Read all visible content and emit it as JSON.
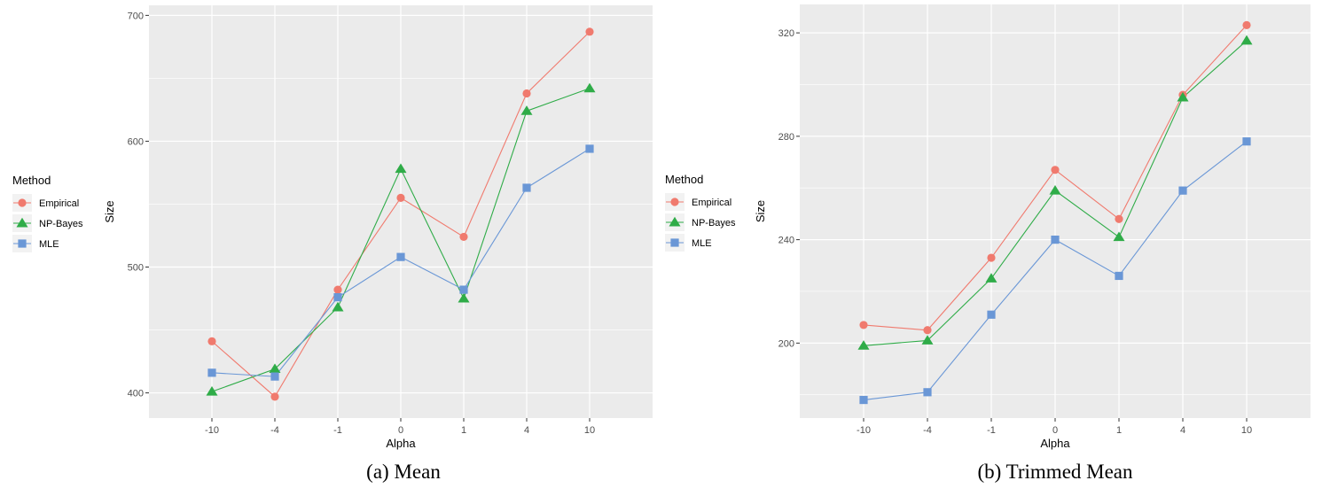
{
  "colors": {
    "panel_bg": "#ebebeb",
    "grid": "#ffffff",
    "Empirical": "#f07a6e",
    "NP-Bayes": "#2fac48",
    "MLE": "#6a97d6",
    "axis_text": "#4d4d4d"
  },
  "chart_data": [
    {
      "type": "line",
      "caption": "(a) Mean",
      "title": "",
      "xlabel": "Alpha",
      "ylabel": "Size",
      "categories": [
        "-10",
        "-4",
        "-1",
        "0",
        "1",
        "4",
        "10"
      ],
      "ylim": [
        380,
        708
      ],
      "yticks": [
        400,
        500,
        600,
        700
      ],
      "legend": {
        "title": "Method",
        "entries": [
          "Empirical",
          "NP-Bayes",
          "MLE"
        ],
        "placement": "left"
      },
      "series": [
        {
          "name": "Empirical",
          "marker": "circle",
          "values": [
            441,
            397,
            482,
            555,
            524,
            638,
            687
          ]
        },
        {
          "name": "NP-Bayes",
          "marker": "triangle",
          "values": [
            401,
            419,
            468,
            578,
            475,
            624,
            642
          ]
        },
        {
          "name": "MLE",
          "marker": "square",
          "values": [
            416,
            413,
            476,
            508,
            482,
            563,
            594
          ]
        }
      ]
    },
    {
      "type": "line",
      "caption": "(b) Trimmed Mean",
      "title": "",
      "xlabel": "Alpha",
      "ylabel": "Size",
      "categories": [
        "-10",
        "-4",
        "-1",
        "0",
        "1",
        "4",
        "10"
      ],
      "ylim": [
        171,
        331
      ],
      "yticks": [
        200,
        240,
        280,
        320
      ],
      "legend": {
        "title": "Method",
        "entries": [
          "Empirical",
          "NP-Bayes",
          "MLE"
        ],
        "placement": "left"
      },
      "series": [
        {
          "name": "Empirical",
          "marker": "circle",
          "values": [
            207,
            205,
            233,
            267,
            248,
            296,
            323
          ]
        },
        {
          "name": "NP-Bayes",
          "marker": "triangle",
          "values": [
            199,
            201,
            225,
            259,
            241,
            295,
            317
          ]
        },
        {
          "name": "MLE",
          "marker": "square",
          "values": [
            178,
            181,
            211,
            240,
            226,
            259,
            278
          ]
        }
      ]
    }
  ]
}
